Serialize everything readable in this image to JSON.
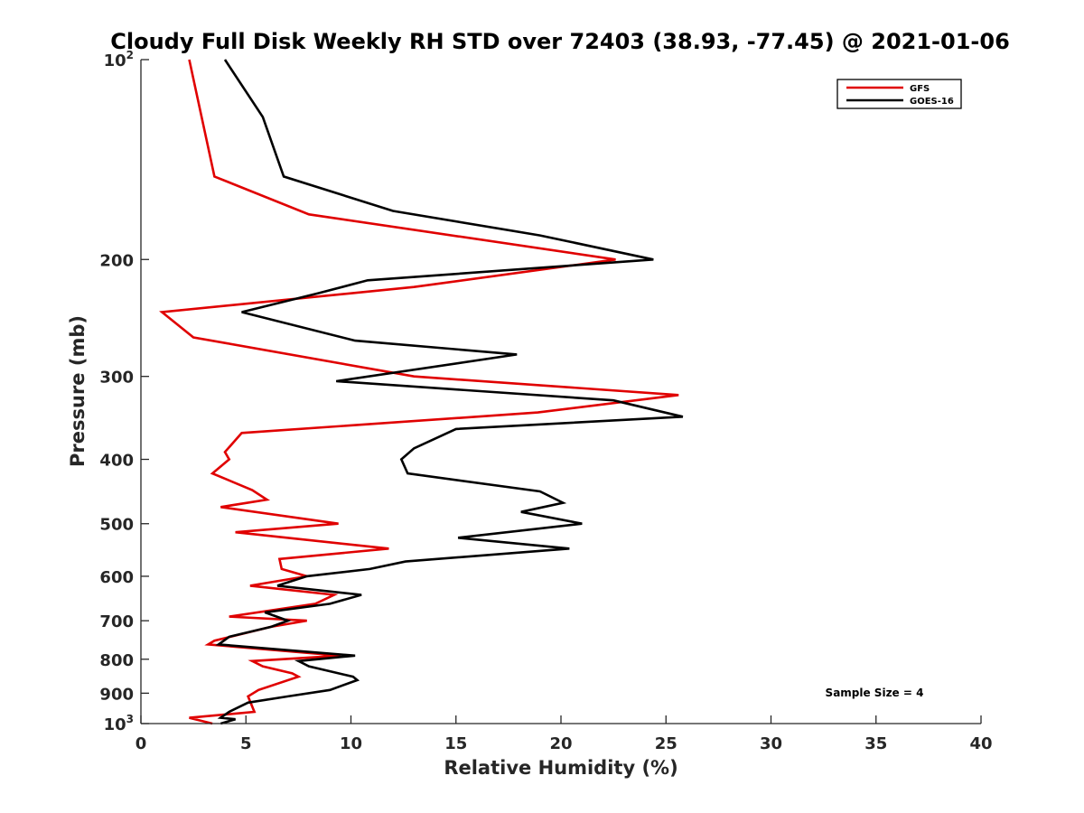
{
  "chart_data": {
    "type": "line",
    "title": "Cloudy Full Disk Weekly RH STD over 72403 (38.93, -77.45) @ 2021-01-06",
    "xlabel": "Relative Humidity (%)",
    "ylabel": "Pressure (mb)",
    "xlim": [
      0,
      40
    ],
    "ylim": [
      100,
      1000
    ],
    "y_scale": "log",
    "y_reversed": true,
    "grid": false,
    "legend_position": "top-right",
    "x_ticks": [
      {
        "value": 0,
        "label": "0"
      },
      {
        "value": 5,
        "label": "5"
      },
      {
        "value": 10,
        "label": "10"
      },
      {
        "value": 15,
        "label": "15"
      },
      {
        "value": 20,
        "label": "20"
      },
      {
        "value": 25,
        "label": "25"
      },
      {
        "value": 30,
        "label": "30"
      },
      {
        "value": 35,
        "label": "35"
      },
      {
        "value": 40,
        "label": "40"
      }
    ],
    "y_ticks": [
      {
        "value": 100,
        "base": "10",
        "exp": "2"
      },
      {
        "value": 200,
        "label": "200"
      },
      {
        "value": 300,
        "label": "300"
      },
      {
        "value": 400,
        "label": "400"
      },
      {
        "value": 500,
        "label": "500"
      },
      {
        "value": 600,
        "label": "600"
      },
      {
        "value": 700,
        "label": "700"
      },
      {
        "value": 800,
        "label": "800"
      },
      {
        "value": 900,
        "label": "900"
      },
      {
        "value": 1000,
        "base": "10",
        "exp": "3"
      }
    ],
    "annotation": "Sample Size = 4",
    "series": [
      {
        "name": "GFS",
        "color": "#e00000",
        "points": [
          [
            2.3,
            100
          ],
          [
            3.5,
            150
          ],
          [
            8.0,
            171
          ],
          [
            22.6,
            200
          ],
          [
            13.0,
            220
          ],
          [
            1.0,
            240
          ],
          [
            2.5,
            262
          ],
          [
            13.0,
            300
          ],
          [
            25.6,
            320
          ],
          [
            18.9,
            340
          ],
          [
            4.8,
            365
          ],
          [
            4.0,
            390
          ],
          [
            4.2,
            400
          ],
          [
            3.4,
            420
          ],
          [
            5.3,
            445
          ],
          [
            6.0,
            460
          ],
          [
            3.8,
            472
          ],
          [
            9.4,
            500
          ],
          [
            4.5,
            515
          ],
          [
            11.8,
            545
          ],
          [
            6.6,
            565
          ],
          [
            6.7,
            585
          ],
          [
            7.9,
            600
          ],
          [
            5.2,
            620
          ],
          [
            9.2,
            640
          ],
          [
            8.3,
            660
          ],
          [
            4.2,
            690
          ],
          [
            7.9,
            700
          ],
          [
            6.2,
            715
          ],
          [
            3.5,
            750
          ],
          [
            3.2,
            760
          ],
          [
            9.5,
            790
          ],
          [
            5.3,
            805
          ],
          [
            5.8,
            820
          ],
          [
            7.2,
            840
          ],
          [
            7.5,
            850
          ],
          [
            5.6,
            890
          ],
          [
            5.1,
            910
          ],
          [
            5.4,
            960
          ],
          [
            2.3,
            980
          ],
          [
            3.4,
            1000
          ]
        ]
      },
      {
        "name": "GOES-16",
        "color": "#000000",
        "points": [
          [
            4.0,
            100
          ],
          [
            5.8,
            122
          ],
          [
            6.8,
            150
          ],
          [
            12.0,
            169
          ],
          [
            19.0,
            184
          ],
          [
            24.4,
            200
          ],
          [
            10.8,
            215
          ],
          [
            8.4,
            225
          ],
          [
            4.8,
            240
          ],
          [
            10.2,
            265
          ],
          [
            17.9,
            278
          ],
          [
            9.3,
            305
          ],
          [
            22.5,
            326
          ],
          [
            25.8,
            345
          ],
          [
            15.0,
            360
          ],
          [
            13.0,
            385
          ],
          [
            12.4,
            400
          ],
          [
            12.7,
            420
          ],
          [
            19.0,
            447
          ],
          [
            20.1,
            465
          ],
          [
            18.1,
            480
          ],
          [
            21.0,
            500
          ],
          [
            15.1,
            525
          ],
          [
            20.4,
            545
          ],
          [
            12.6,
            570
          ],
          [
            10.9,
            585
          ],
          [
            7.9,
            600
          ],
          [
            6.5,
            620
          ],
          [
            10.5,
            640
          ],
          [
            9.0,
            660
          ],
          [
            5.9,
            680
          ],
          [
            7.0,
            700
          ],
          [
            6.2,
            715
          ],
          [
            4.2,
            740
          ],
          [
            3.7,
            760
          ],
          [
            10.2,
            790
          ],
          [
            7.5,
            805
          ],
          [
            8.0,
            820
          ],
          [
            10.1,
            850
          ],
          [
            10.3,
            860
          ],
          [
            9.0,
            890
          ],
          [
            7.0,
            910
          ],
          [
            5.1,
            930
          ],
          [
            4.2,
            960
          ],
          [
            3.8,
            980
          ],
          [
            4.5,
            985
          ],
          [
            3.8,
            1000
          ]
        ]
      }
    ]
  }
}
